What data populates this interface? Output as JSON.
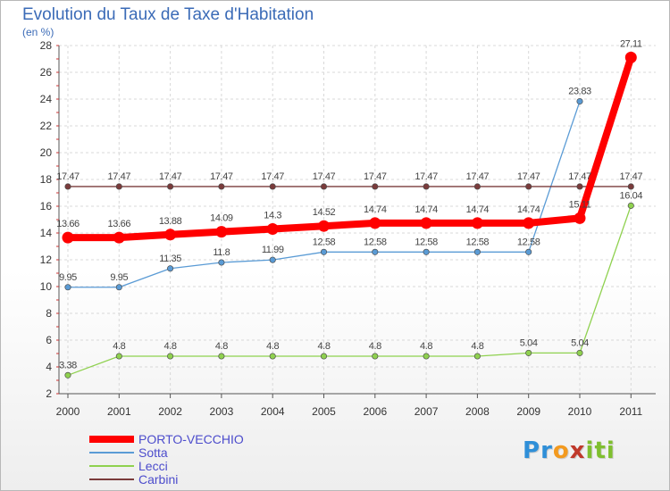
{
  "header": {
    "title": "Evolution du Taux de Taxe d'Habitation",
    "unit": "(en %)"
  },
  "logo": {
    "text": "Proxiti",
    "letters": [
      {
        "ch": "P",
        "color": "#2f8fd8"
      },
      {
        "ch": "r",
        "color": "#2f8fd8"
      },
      {
        "ch": "o",
        "color": "#f39a1f"
      },
      {
        "ch": "x",
        "color": "#c0392b"
      },
      {
        "ch": "i",
        "color": "#7fbf2f"
      },
      {
        "ch": "t",
        "color": "#7fbf2f"
      },
      {
        "ch": "i",
        "color": "#7fbf2f"
      }
    ]
  },
  "chart_data": {
    "type": "line",
    "title": "Evolution du Taux de Taxe d'Habitation",
    "ylabel": "(en %)",
    "x": [
      "2000",
      "2001",
      "2002",
      "2003",
      "2004",
      "2005",
      "2006",
      "2007",
      "2008",
      "2009",
      "2010",
      "2011"
    ],
    "ylim": [
      2,
      28
    ],
    "yticks": [
      2,
      4,
      6,
      8,
      10,
      12,
      14,
      16,
      18,
      20,
      22,
      24,
      26,
      28
    ],
    "grid": true,
    "legend_position": "bottom-left",
    "series": [
      {
        "name": "PORTO-VECCHIO",
        "color": "#ff0000",
        "thick": true,
        "values": [
          13.66,
          13.66,
          13.88,
          14.09,
          14.3,
          14.52,
          14.74,
          14.74,
          14.74,
          14.74,
          15.11,
          27.11
        ],
        "labels": [
          "13.66",
          "13.66",
          "13.88",
          "14.09",
          "14.3",
          "14.52",
          "14.74",
          "14.74",
          "14.74",
          "14.74",
          "15.11",
          "27.11"
        ]
      },
      {
        "name": "Sotta",
        "color": "#5a9bd5",
        "thick": false,
        "values": [
          9.95,
          9.95,
          11.35,
          11.8,
          11.99,
          12.58,
          12.58,
          12.58,
          12.58,
          12.58,
          23.83,
          null
        ],
        "labels": [
          "9.95",
          "9.95",
          "11.35",
          "11.8",
          "11.99",
          "12.58",
          "12.58",
          "12.58",
          "12.58",
          "12.58",
          "23.83",
          null
        ]
      },
      {
        "name": "Lecci",
        "color": "#8fd14f",
        "thick": false,
        "values": [
          3.38,
          4.8,
          4.8,
          4.8,
          4.8,
          4.8,
          4.8,
          4.8,
          4.8,
          5.04,
          5.04,
          16.04
        ],
        "labels": [
          "3.38",
          "4.8",
          "4.8",
          "4.8",
          "4.8",
          "4.8",
          "4.8",
          "4.8",
          "4.8",
          "5.04",
          "5.04",
          "16.04"
        ]
      },
      {
        "name": "Carbini",
        "color": "#7a3b3b",
        "thick": false,
        "values": [
          17.47,
          17.47,
          17.47,
          17.47,
          17.47,
          17.47,
          17.47,
          17.47,
          17.47,
          17.47,
          17.47,
          17.47
        ],
        "labels": [
          "17.47",
          "17.47",
          "17.47",
          "17.47",
          "17.47",
          "17.47",
          "17.47",
          "17.47",
          "17.47",
          "17.47",
          "17.47",
          "17.47"
        ]
      }
    ]
  }
}
